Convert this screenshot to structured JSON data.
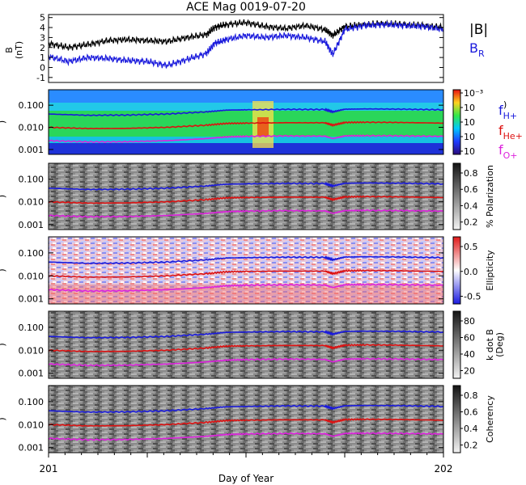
{
  "title": "ACE Mag 0019-07-20",
  "x_axis": {
    "start_label": "201",
    "end_label": "202",
    "label": "Day of Year"
  },
  "legend": {
    "b_total": "|B|",
    "b_r_main": "B",
    "b_r_sub": "R",
    "fh_main": "f",
    "fh_sub": "H+",
    "fhe_main": "f",
    "fhe_sub": "He+",
    "fo_main": "f",
    "fo_sub": "O+"
  },
  "colors": {
    "b_total": "#000000",
    "b_r": "#1a1adc",
    "f_h": "#1a1adc",
    "f_he": "#dd1111",
    "f_o": "#dd22dd"
  },
  "panels": [
    {
      "id": "bfield",
      "ylabel_main": "B",
      "ylabel_unit": "(nT)",
      "yticks": [
        "5",
        "4",
        "3",
        "2",
        "1",
        "0",
        "-1"
      ]
    },
    {
      "id": "power",
      "ylabel": ")",
      "yticks": [
        "0.100",
        "0.010",
        "0.001"
      ],
      "colorbar_ticks": [
        "10⁻³",
        "10",
        "10",
        "10",
        "10"
      ],
      "colorbar_extra": ")",
      "colorbar_type": "rainbow"
    },
    {
      "id": "polarization",
      "ylabel": ")",
      "yticks": [
        "0.100",
        "0.010",
        "0.001"
      ],
      "colorbar_ticks": [
        "0.8",
        "0.6",
        "0.4",
        "0.2"
      ],
      "colorbar_label": "% Polarization",
      "colorbar_type": "gray"
    },
    {
      "id": "ellipticity",
      "ylabel": ")",
      "yticks": [
        "0.100",
        "0.010",
        "0.001"
      ],
      "colorbar_ticks": [
        "0.5",
        "0.0",
        "-0.5"
      ],
      "colorbar_label": "Ellipticity",
      "colorbar_type": "bwr"
    },
    {
      "id": "kdotb",
      "ylabel": ")",
      "yticks": [
        "0.100",
        "0.010",
        "0.001"
      ],
      "colorbar_ticks": [
        "80",
        "60",
        "40",
        "20"
      ],
      "colorbar_label": "k dot B",
      "colorbar_label2": "(Deg)",
      "colorbar_type": "gray"
    },
    {
      "id": "coherency",
      "ylabel": ")",
      "yticks": [
        "0.100",
        "0.010",
        "0.001"
      ],
      "colorbar_ticks": [
        "0.8",
        "0.6",
        "0.4",
        "0.2"
      ],
      "colorbar_label": "Coherency",
      "colorbar_type": "gray"
    }
  ],
  "chart_data": {
    "type": "line",
    "title": "ACE Mag 0019-07-20",
    "xlabel": "Day of Year",
    "xlim": [
      201,
      202
    ],
    "panel_bfield": {
      "ylim": [
        -1.5,
        5.3
      ],
      "series": [
        {
          "name": "|B|",
          "x": [
            201.0,
            201.05,
            201.1,
            201.15,
            201.2,
            201.25,
            201.3,
            201.35,
            201.4,
            201.42,
            201.45,
            201.5,
            201.55,
            201.6,
            201.65,
            201.7,
            201.72,
            201.75,
            201.8,
            201.85,
            201.9,
            201.95,
            202.0
          ],
          "values": [
            2.4,
            2.0,
            2.3,
            2.7,
            2.8,
            2.7,
            2.6,
            3.0,
            3.3,
            4.0,
            4.3,
            4.5,
            4.1,
            3.9,
            4.2,
            3.8,
            3.2,
            4.1,
            4.3,
            4.4,
            4.3,
            4.2,
            4.0
          ]
        },
        {
          "name": "B_R",
          "x": [
            201.0,
            201.05,
            201.1,
            201.15,
            201.2,
            201.25,
            201.3,
            201.35,
            201.4,
            201.42,
            201.45,
            201.5,
            201.55,
            201.6,
            201.65,
            201.7,
            201.72,
            201.75,
            201.8,
            201.85,
            201.9,
            201.95,
            202.0
          ],
          "values": [
            1.1,
            0.6,
            1.0,
            0.9,
            0.7,
            0.6,
            0.2,
            0.8,
            1.4,
            2.4,
            2.8,
            3.2,
            3.0,
            3.2,
            3.0,
            2.6,
            1.3,
            3.8,
            4.2,
            4.3,
            4.2,
            4.1,
            3.8
          ]
        }
      ]
    },
    "panel_frequency_lines": {
      "ylim": [
        0.0006,
        0.5
      ],
      "scale": "log",
      "series": [
        {
          "name": "H+",
          "x": [
            201.0,
            201.1,
            201.2,
            201.3,
            201.4,
            201.45,
            201.5,
            201.6,
            201.7,
            201.72,
            201.75,
            201.8,
            201.9,
            202.0
          ],
          "values": [
            0.04,
            0.035,
            0.036,
            0.04,
            0.05,
            0.06,
            0.062,
            0.065,
            0.064,
            0.05,
            0.066,
            0.068,
            0.066,
            0.062
          ]
        },
        {
          "name": "He+",
          "x": [
            201.0,
            201.1,
            201.2,
            201.3,
            201.4,
            201.45,
            201.5,
            201.6,
            201.7,
            201.72,
            201.75,
            201.8,
            201.9,
            202.0
          ],
          "values": [
            0.01,
            0.0088,
            0.009,
            0.01,
            0.0125,
            0.015,
            0.0155,
            0.0162,
            0.016,
            0.0125,
            0.0165,
            0.017,
            0.0165,
            0.0155
          ]
        },
        {
          "name": "O+",
          "x": [
            201.0,
            201.1,
            201.2,
            201.3,
            201.4,
            201.45,
            201.5,
            201.6,
            201.7,
            201.72,
            201.75,
            201.8,
            201.9,
            202.0
          ],
          "values": [
            0.0025,
            0.0022,
            0.00225,
            0.0025,
            0.0031,
            0.0037,
            0.0039,
            0.0041,
            0.004,
            0.0031,
            0.0041,
            0.0042,
            0.0041,
            0.0039
          ]
        }
      ]
    }
  }
}
